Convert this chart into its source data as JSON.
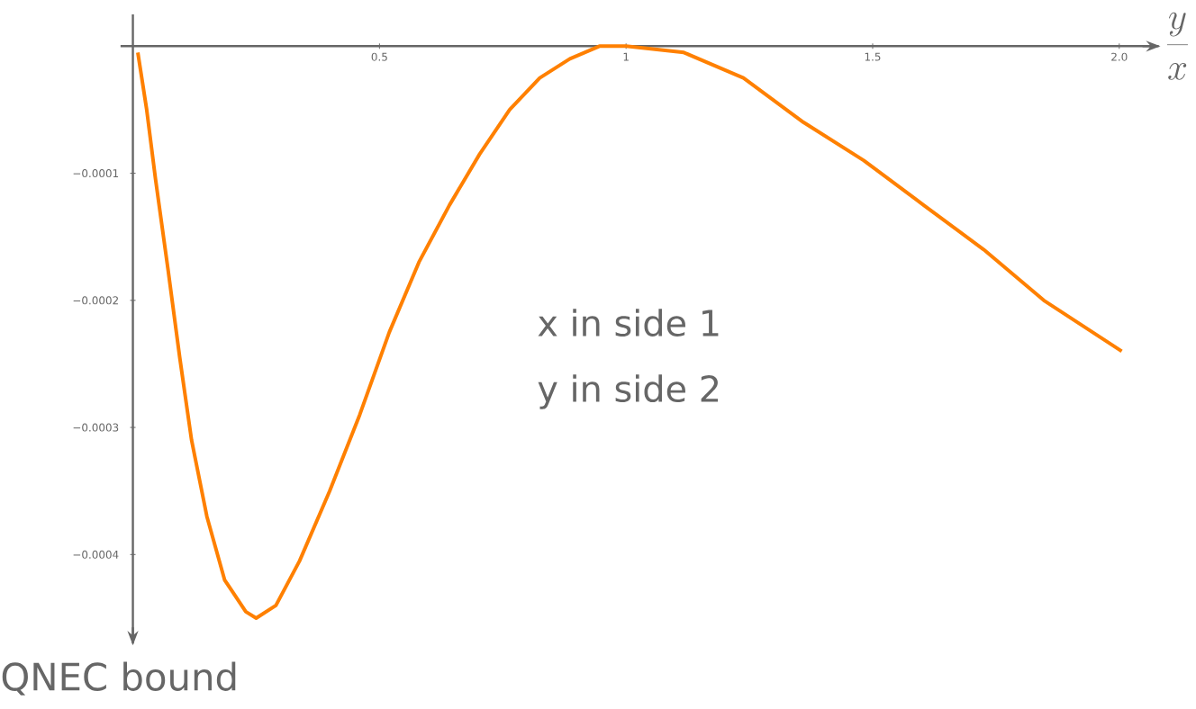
{
  "chart_data": {
    "type": "line",
    "xlabel": "\\frac{y}{x}",
    "ylabel": "QNEC bound",
    "annotations": [
      "x in side 1",
      "y in side 2"
    ],
    "xlim": [
      -0.025,
      2.08
    ],
    "ylim": [
      -0.00047,
      2.5e-05
    ],
    "xticks": [
      {
        "value": 0.5,
        "label": "0.5"
      },
      {
        "value": 1,
        "label": "1"
      },
      {
        "value": 1.5,
        "label": "1.5"
      },
      {
        "value": 2,
        "label": "2.0"
      }
    ],
    "yticks": [
      {
        "value": -0.0001,
        "label": "−0.0001"
      },
      {
        "value": -0.0002,
        "label": "−0.0002"
      },
      {
        "value": -0.0003,
        "label": "−0.0003"
      },
      {
        "value": -0.0004,
        "label": "−0.0004"
      }
    ],
    "series": [
      {
        "color": "#ff8000",
        "x": [
          0.01,
          0.028,
          0.046,
          0.071,
          0.095,
          0.119,
          0.15,
          0.186,
          0.229,
          0.25,
          0.29,
          0.338,
          0.399,
          0.46,
          0.52,
          0.58,
          0.642,
          0.703,
          0.764,
          0.825,
          0.886,
          0.946,
          1.0,
          1.117,
          1.238,
          1.36,
          1.482,
          1.603,
          1.725,
          1.847,
          2.005
        ],
        "values": [
          -5e-06,
          -5e-05,
          -0.000105,
          -0.000175,
          -0.000245,
          -0.00031,
          -0.00037,
          -0.00042,
          -0.000445,
          -0.00045,
          -0.00044,
          -0.000405,
          -0.00035,
          -0.00029,
          -0.000225,
          -0.00017,
          -0.000125,
          -8.5e-05,
          -5e-05,
          -2.5e-05,
          -1e-05,
          0,
          0,
          -5e-06,
          -2.5e-05,
          -6e-05,
          -9e-05,
          -0.000125,
          -0.00016,
          -0.0002,
          -0.00024
        ]
      }
    ]
  }
}
